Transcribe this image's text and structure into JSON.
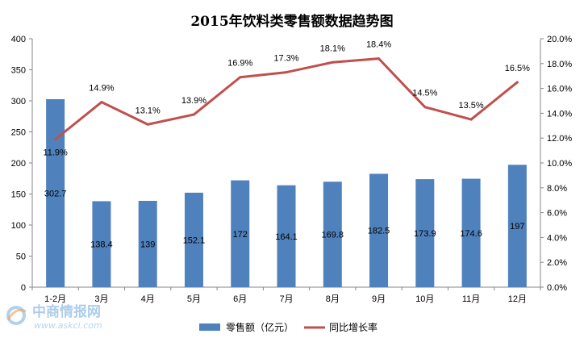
{
  "chart_data": {
    "type": "bar",
    "title": "2015年饮料类零售额数据趋势图",
    "categories": [
      "1-2月",
      "3月",
      "4月",
      "5月",
      "6月",
      "7月",
      "8月",
      "9月",
      "10月",
      "11月",
      "12月"
    ],
    "series": [
      {
        "name": "零售额（亿元）",
        "type": "bar",
        "axis": "left",
        "color": "#4F81BD",
        "values": [
          302.7,
          138.4,
          139,
          152.1,
          172,
          164.1,
          169.8,
          182.5,
          173.9,
          174.6,
          197
        ],
        "labels": [
          "302.7",
          "138.4",
          "139",
          "152.1",
          "172",
          "164.1",
          "169.8",
          "182.5",
          "173.9",
          "174.6",
          "197"
        ]
      },
      {
        "name": "同比增长率",
        "type": "line",
        "axis": "right",
        "color": "#C0504D",
        "values": [
          11.9,
          14.9,
          13.1,
          13.9,
          16.9,
          17.3,
          18.1,
          18.4,
          14.5,
          13.5,
          16.5
        ],
        "labels": [
          "11.9%",
          "14.9%",
          "13.1%",
          "13.9%",
          "16.9%",
          "17.3%",
          "18.1%",
          "18.4%",
          "14.5%",
          "13.5%",
          "16.5%"
        ]
      }
    ],
    "y_left": {
      "range": [
        0,
        400
      ],
      "ticks": [
        0,
        50,
        100,
        150,
        200,
        250,
        300,
        350,
        400
      ],
      "tick_labels": [
        "0",
        "50",
        "100",
        "150",
        "200",
        "250",
        "300",
        "350",
        "400"
      ]
    },
    "y_right": {
      "range": [
        0,
        20
      ],
      "ticks": [
        0,
        2,
        4,
        6,
        8,
        10,
        12,
        14,
        16,
        18,
        20
      ],
      "tick_labels": [
        "0.0%",
        "2.0%",
        "4.0%",
        "6.0%",
        "8.0%",
        "10.0%",
        "12.0%",
        "14.0%",
        "16.0%",
        "18.0%",
        "20.0%"
      ]
    },
    "grid": false,
    "legend_position": "bottom"
  },
  "watermark": {
    "brand": "中商情报网",
    "url": "www.askci.com"
  }
}
